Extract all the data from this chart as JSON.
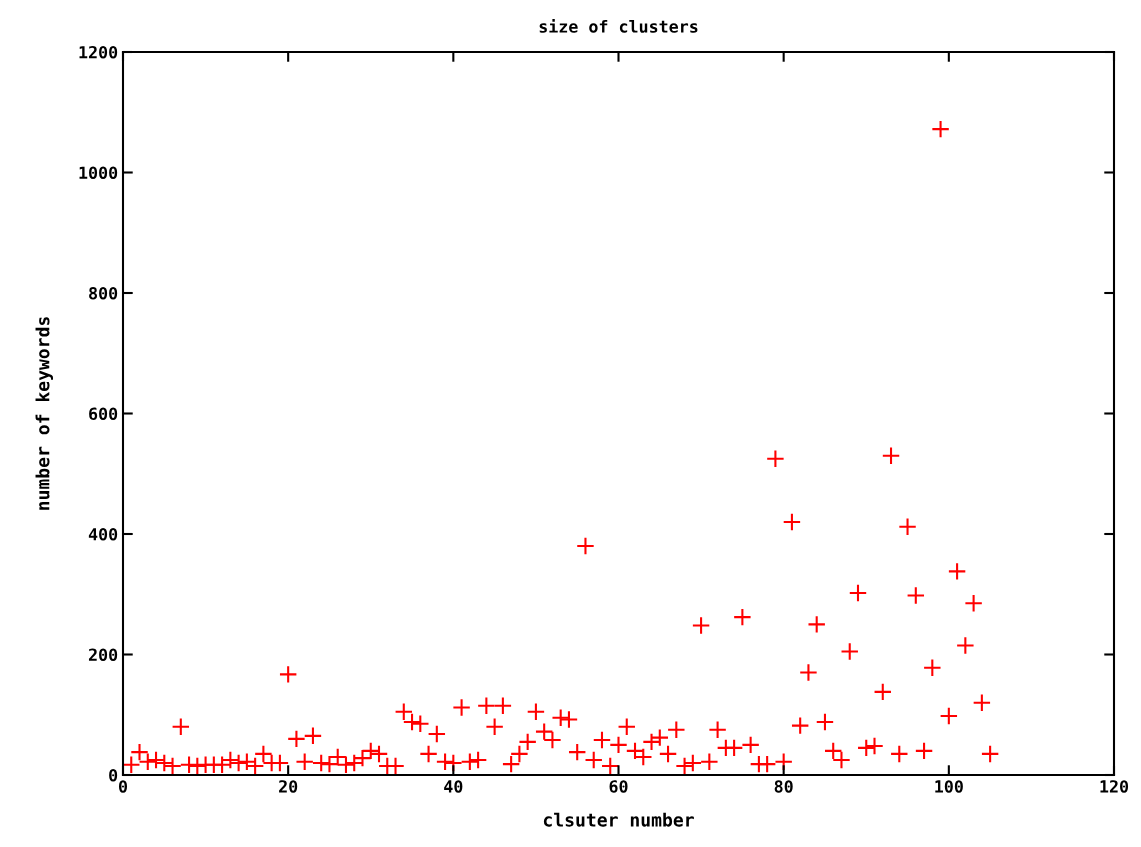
{
  "chart_data": {
    "type": "scatter",
    "title": "size of clusters",
    "xlabel": "clsuter number",
    "ylabel": "number of keywords",
    "x": [
      1,
      2,
      3,
      4,
      5,
      6,
      7,
      8,
      9,
      10,
      11,
      12,
      13,
      14,
      15,
      16,
      17,
      18,
      19,
      20,
      21,
      22,
      23,
      24,
      25,
      26,
      27,
      28,
      29,
      30,
      31,
      32,
      33,
      34,
      35,
      36,
      37,
      38,
      39,
      40,
      41,
      42,
      43,
      44,
      45,
      46,
      47,
      48,
      49,
      50,
      51,
      52,
      53,
      54,
      55,
      56,
      57,
      58,
      59,
      60,
      61,
      62,
      63,
      64,
      65,
      66,
      67,
      68,
      69,
      70,
      71,
      72,
      73,
      74,
      75,
      76,
      77,
      78,
      79,
      80,
      81,
      82,
      83,
      84,
      85,
      86,
      87,
      88,
      89,
      90,
      91,
      92,
      93,
      94,
      95,
      96,
      97,
      98,
      99,
      100,
      101,
      102,
      103,
      104,
      105
    ],
    "series": [
      {
        "color": "#ff0000",
        "values": [
          17,
          38,
          22,
          25,
          20,
          15,
          80,
          17,
          15,
          17,
          17,
          17,
          25,
          20,
          22,
          15,
          35,
          20,
          20,
          167,
          60,
          22,
          65,
          20,
          18,
          30,
          17,
          20,
          28,
          40,
          35,
          15,
          15,
          105,
          88,
          85,
          35,
          68,
          22,
          20,
          112,
          22,
          25,
          115,
          80,
          115,
          18,
          35,
          55,
          105,
          72,
          58,
          95,
          92,
          38,
          380,
          25,
          58,
          15,
          50,
          80,
          40,
          30,
          55,
          62,
          35,
          75,
          15,
          20,
          248,
          22,
          75,
          45,
          45,
          262,
          50,
          18,
          18,
          525,
          22,
          420,
          82,
          170,
          250,
          88,
          40,
          25,
          205,
          302,
          45,
          48,
          138,
          530,
          35,
          412,
          298,
          40,
          178,
          1072,
          98,
          338,
          215,
          285,
          120,
          35
        ]
      }
    ],
    "xlim": [
      0,
      120
    ],
    "xticks": [
      0,
      20,
      40,
      60,
      80,
      100,
      120
    ],
    "ylim": [
      0,
      1200
    ],
    "yticks": [
      0,
      200,
      400,
      600,
      800,
      1000,
      1200
    ],
    "marker": "cross",
    "grid": false,
    "legend": false
  }
}
